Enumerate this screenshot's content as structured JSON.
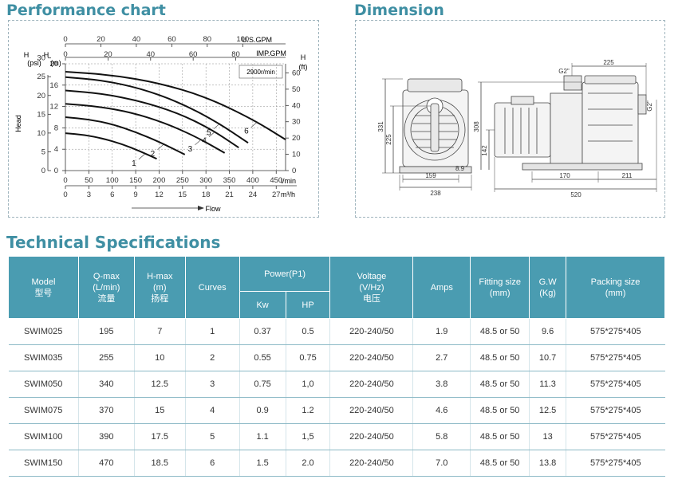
{
  "sections": {
    "performance_title": "Performance chart",
    "dimension_title": "Dimension",
    "spec_title": "Technical Specifications"
  },
  "chart_data": {
    "type": "line",
    "axes": {
      "us_gpm": {
        "label": "U.S.GPM",
        "ticks": [
          "0",
          "20",
          "40",
          "60",
          "80",
          "100"
        ]
      },
      "imp_gpm": {
        "label": "IMP.GPM",
        "ticks": [
          "0",
          "20",
          "40",
          "60",
          "80"
        ]
      },
      "lmin": {
        "label": "l/min",
        "ticks": [
          "0",
          "50",
          "100",
          "150",
          "200",
          "250",
          "300",
          "350",
          "400",
          "450"
        ]
      },
      "m3h": {
        "label": "m³/h",
        "ticks": [
          "0",
          "3",
          "6",
          "9",
          "12",
          "15",
          "18",
          "21",
          "24",
          "27"
        ]
      },
      "psi": {
        "label": "(psi)",
        "ticks": [
          "0",
          "5",
          "10",
          "15",
          "20",
          "25",
          "30"
        ]
      },
      "m_left": {
        "label": "(m)",
        "ticks": [
          "0",
          "4",
          "8",
          "12",
          "16",
          "20"
        ]
      },
      "ft": {
        "label": "(ft)",
        "ticks": [
          "0",
          "10",
          "20",
          "30",
          "40",
          "50",
          "60"
        ]
      }
    },
    "left_labels": {
      "h1": "H",
      "h2": "H",
      "head": "Head"
    },
    "right_label_h": "H",
    "flow_label": "Flow",
    "speed": "2900r/min",
    "xlim": [
      0,
      470
    ],
    "ylim": [
      0,
      20
    ],
    "series": [
      {
        "name": "1",
        "x": [
          0,
          40,
          80,
          120,
          160,
          195
        ],
        "y": [
          7,
          6.7,
          6.0,
          5.0,
          3.6,
          2.2
        ]
      },
      {
        "name": "2",
        "x": [
          0,
          50,
          100,
          150,
          200,
          255
        ],
        "y": [
          10,
          9.6,
          8.7,
          7.2,
          5.4,
          3.0
        ]
      },
      {
        "name": "3",
        "x": [
          0,
          70,
          140,
          210,
          280,
          340
        ],
        "y": [
          12.5,
          12.0,
          10.9,
          9.0,
          6.3,
          3.3
        ]
      },
      {
        "name": "4",
        "x": [
          0,
          80,
          160,
          240,
          310,
          370
        ],
        "y": [
          15,
          14.4,
          13.0,
          10.8,
          7.8,
          4.3
        ]
      },
      {
        "name": "5",
        "x": [
          0,
          80,
          160,
          240,
          320,
          390
        ],
        "y": [
          17.5,
          16.9,
          15.4,
          12.9,
          9.3,
          5.2
        ]
      },
      {
        "name": "6",
        "x": [
          0,
          100,
          200,
          300,
          400,
          470
        ],
        "y": [
          18.5,
          17.9,
          16.4,
          13.8,
          9.6,
          5.8
        ]
      }
    ]
  },
  "dimension": {
    "left_view": [
      "331",
      "225",
      "159",
      "238",
      "8.9"
    ],
    "right_view": [
      "225",
      "G2\"",
      "G2\"",
      "308",
      "142",
      "170",
      "211",
      "520"
    ]
  },
  "table": {
    "headers": {
      "model": [
        "Model",
        "型号"
      ],
      "qmax": [
        "Q-max",
        "(L/min)",
        "流量"
      ],
      "hmax": [
        "H-max",
        "(m)",
        "扬程"
      ],
      "curves": "Curves",
      "power": "Power(P1)",
      "kw": "Kw",
      "hp": "HP",
      "voltage": [
        "Voltage",
        "(V/Hz)",
        "电压"
      ],
      "amps": "Amps",
      "fitting": [
        "Fitting size",
        "(mm)"
      ],
      "gw": [
        "G.W",
        "(Kg)"
      ],
      "packing": [
        "Packing size",
        "(mm)"
      ]
    },
    "rows": [
      [
        "SWIM025",
        "195",
        "7",
        "1",
        "0.37",
        "0.5",
        "220-240/50",
        "1.9",
        "48.5 or 50",
        "9.6",
        "575*275*405"
      ],
      [
        "SWIM035",
        "255",
        "10",
        "2",
        "0.55",
        "0.75",
        "220-240/50",
        "2.7",
        "48.5 or 50",
        "10.7",
        "575*275*405"
      ],
      [
        "SWIM050",
        "340",
        "12.5",
        "3",
        "0.75",
        "1,0",
        "220-240/50",
        "3.8",
        "48.5 or 50",
        "11.3",
        "575*275*405"
      ],
      [
        "SWIM075",
        "370",
        "15",
        "4",
        "0.9",
        "1.2",
        "220-240/50",
        "4.6",
        "48.5 or 50",
        "12.5",
        "575*275*405"
      ],
      [
        "SWIM100",
        "390",
        "17.5",
        "5",
        "1.1",
        "1,5",
        "220-240/50",
        "5.8",
        "48.5 or 50",
        "13",
        "575*275*405"
      ],
      [
        "SWIM150",
        "470",
        "18.5",
        "6",
        "1.5",
        "2.0",
        "220-240/50",
        "7.0",
        "48.5 or 50",
        "13.8",
        "575*275*405"
      ]
    ]
  }
}
